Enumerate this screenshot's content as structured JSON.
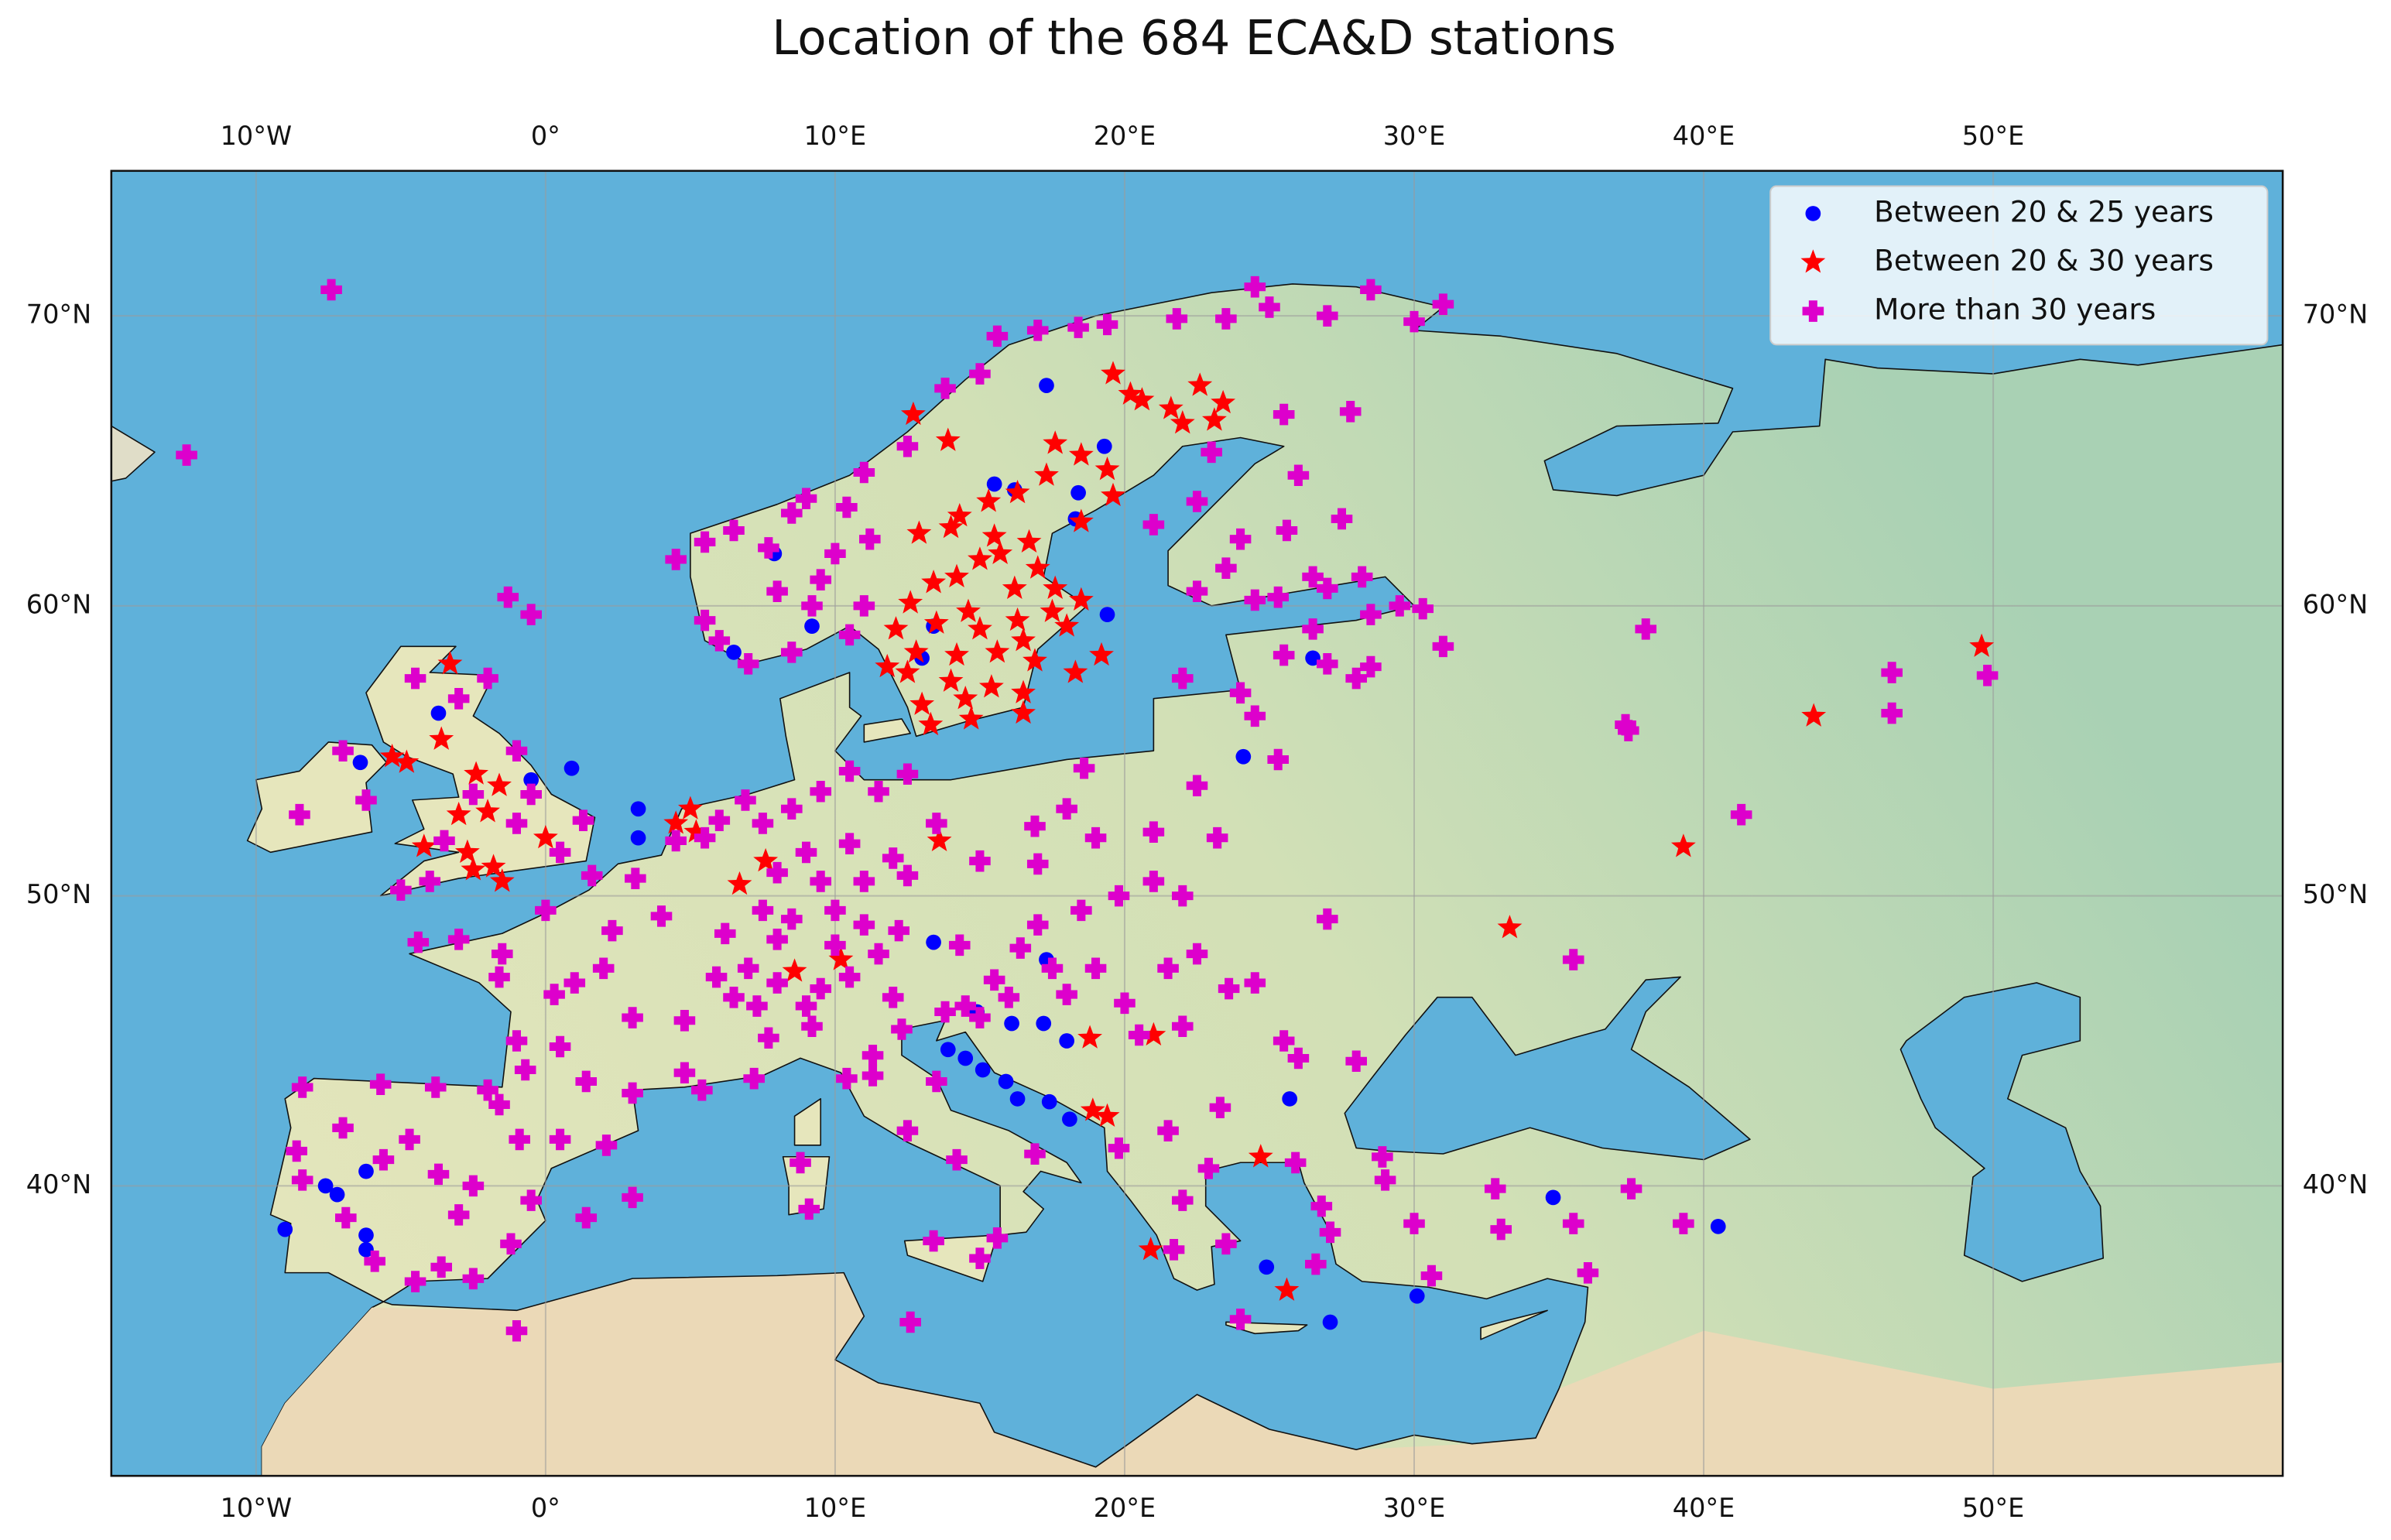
{
  "chart_data": {
    "type": "scatter",
    "title": "Location of the 684 ECA&D stations",
    "xlim": [
      -15,
      60
    ],
    "ylim": [
      30,
      75
    ],
    "xticks": [
      {
        "value": -10,
        "label": "10°W"
      },
      {
        "value": 0,
        "label": "0°"
      },
      {
        "value": 10,
        "label": "10°E"
      },
      {
        "value": 20,
        "label": "20°E"
      },
      {
        "value": 30,
        "label": "30°E"
      },
      {
        "value": 40,
        "label": "40°E"
      },
      {
        "value": 50,
        "label": "50°E"
      }
    ],
    "yticks": [
      {
        "value": 40,
        "label": "40°N"
      },
      {
        "value": 50,
        "label": "50°N"
      },
      {
        "value": 60,
        "label": "60°N"
      },
      {
        "value": 70,
        "label": "70°N"
      }
    ],
    "grid": true,
    "legend": "upper right",
    "series": [
      {
        "name": "Between 20 & 25 years",
        "color": "#0000ff",
        "marker": "o",
        "x": [
          17.3,
          19.3,
          18.4,
          18.3,
          15.5,
          16.2,
          7.9,
          9.2,
          13.4,
          13.0,
          19.4,
          6.5,
          26.5,
          24.1,
          -3.7,
          -6.4,
          -0.5,
          0.9,
          3.2,
          3.2,
          13.4,
          17.3,
          14.9,
          16.1,
          17.2,
          18.0,
          13.9,
          14.5,
          15.1,
          15.9,
          16.3,
          17.4,
          18.1,
          25.7,
          -7.6,
          -7.2,
          -6.2,
          -6.2,
          -6.2,
          -9.0,
          34.8,
          40.5,
          24.9,
          27.1,
          30.1
        ],
        "values": [
          67.6,
          65.5,
          63.9,
          63.0,
          64.2,
          64.0,
          61.8,
          59.3,
          59.3,
          58.2,
          59.7,
          58.4,
          58.2,
          54.8,
          56.3,
          54.6,
          54.0,
          54.4,
          53.0,
          52.0,
          48.4,
          47.8,
          46.0,
          45.6,
          45.6,
          45.0,
          44.7,
          44.4,
          44.0,
          43.6,
          43.0,
          42.9,
          42.3,
          43.0,
          40.0,
          39.7,
          40.5,
          38.3,
          37.8,
          38.5,
          39.6,
          38.6,
          37.2,
          35.3,
          36.2
        ]
      },
      {
        "name": "Between 20 & 30 years",
        "color": "#ff0000",
        "marker": "*",
        "x": [
          12.7,
          13.9,
          17.6,
          18.5,
          19.4,
          19.6,
          20.2,
          20.6,
          21.6,
          22.0,
          22.6,
          23.1,
          23.4,
          17.3,
          16.3,
          15.3,
          14.3,
          12.9,
          15.5,
          14.0,
          16.7,
          18.5,
          19.6,
          15.7,
          17.0,
          14.2,
          15.0,
          13.4,
          16.2,
          17.6,
          18.5,
          12.6,
          14.6,
          16.3,
          17.5,
          12.1,
          13.5,
          15.0,
          16.5,
          18.0,
          12.8,
          14.2,
          15.6,
          16.9,
          18.3,
          19.2,
          12.5,
          14.0,
          15.4,
          16.5,
          13.0,
          14.5,
          13.3,
          14.7,
          16.5,
          11.8,
          -3.3,
          -3.6,
          -4.8,
          -5.3,
          -2.4,
          -1.6,
          -3.0,
          -2.0,
          -4.2,
          -2.7,
          -1.8,
          -2.5,
          -1.5,
          0.0,
          5.0,
          4.5,
          5.2,
          7.6,
          6.7,
          8.6,
          10.2,
          13.6,
          18.8,
          21.0,
          18.9,
          19.4,
          20.9,
          24.7,
          25.6,
          33.3,
          39.3,
          43.8,
          49.6
        ],
        "values": [
          66.6,
          65.7,
          65.6,
          65.2,
          64.7,
          68.0,
          67.3,
          67.1,
          66.8,
          66.3,
          67.6,
          66.4,
          67.0,
          64.5,
          63.9,
          63.6,
          63.1,
          62.5,
          62.4,
          62.7,
          62.2,
          62.9,
          63.8,
          61.8,
          61.3,
          61.0,
          61.6,
          60.8,
          60.6,
          60.6,
          60.2,
          60.1,
          59.8,
          59.5,
          59.8,
          59.2,
          59.4,
          59.2,
          58.8,
          59.3,
          58.4,
          58.3,
          58.4,
          58.1,
          57.7,
          58.3,
          57.7,
          57.4,
          57.2,
          57.0,
          56.6,
          56.8,
          55.9,
          56.1,
          56.3,
          57.9,
          58.0,
          55.4,
          54.6,
          54.8,
          54.2,
          53.8,
          52.8,
          52.9,
          51.7,
          51.5,
          51.0,
          50.9,
          50.5,
          52.0,
          53.0,
          52.5,
          52.2,
          51.2,
          50.4,
          47.4,
          47.8,
          51.9,
          45.1,
          45.2,
          42.6,
          42.4,
          37.8,
          41.0,
          36.4,
          48.9,
          51.7,
          56.2,
          58.6
        ]
      },
      {
        "name": "More than 30 years",
        "color": "#dd00cc",
        "marker": "P",
        "x": [
          -12.4,
          -7.4,
          4.5,
          5.5,
          6.5,
          7.7,
          8.5,
          9.0,
          10.4,
          11.0,
          12.5,
          13.8,
          15.0,
          15.6,
          17.0,
          18.4,
          19.4,
          21.8,
          23.5,
          25.0,
          27.0,
          28.5,
          30.0,
          31.0,
          24.5,
          8.0,
          9.5,
          10.0,
          11.2,
          9.2,
          11.0,
          10.5,
          8.5,
          7.0,
          6.0,
          5.5,
          21.0,
          22.5,
          24.0,
          25.6,
          27.5,
          26.0,
          27.8,
          25.5,
          23.0,
          23.5,
          25.3,
          22.5,
          24.5,
          26.5,
          28.2,
          27.0,
          28.5,
          29.5,
          22.0,
          24.0,
          25.5,
          27.0,
          26.5,
          28.0,
          24.5,
          25.3,
          28.5,
          30.3,
          31.0,
          38.0,
          37.4,
          37.3,
          41.3,
          46.5,
          46.5,
          49.8,
          35.5,
          27.0,
          25.5,
          28.0,
          -6.2,
          -8.5,
          -7.0,
          -4.5,
          -3.0,
          -2.0,
          -1.0,
          -0.5,
          -2.5,
          -3.5,
          -1.0,
          0.5,
          1.3,
          -5.0,
          -4.0,
          -0.5,
          -1.3,
          4.5,
          5.5,
          6.0,
          6.9,
          7.5,
          8.5,
          9.5,
          10.5,
          11.5,
          12.5,
          13.5,
          12.0,
          10.5,
          9.0,
          8.0,
          9.5,
          11.0,
          12.5,
          7.5,
          8.5,
          10.0,
          11.0,
          12.2,
          11.5,
          10.0,
          8.0,
          7.0,
          8.0,
          9.5,
          10.5,
          6.5,
          7.3,
          9.0,
          12.0,
          13.8,
          14.5,
          15.0,
          16.0,
          16.4,
          15.5,
          14.3,
          17.0,
          18.5,
          19.8,
          21.0,
          22.0,
          21.0,
          18.0,
          16.9,
          15.0,
          17.0,
          19.0,
          23.2,
          22.5,
          18.6,
          19.0,
          17.5,
          18.0,
          20.0,
          21.5,
          22.5,
          20.5,
          22.0,
          23.6,
          24.5,
          26.0,
          23.3,
          21.5,
          19.8,
          23.5,
          22.0,
          22.9,
          25.9,
          21.7,
          24.0,
          26.6,
          26.8,
          28.9,
          29.0,
          32.8,
          30.6,
          33.0,
          36.0,
          35.5,
          39.3,
          37.5,
          27.1,
          30.0,
          2.3,
          0.0,
          1.0,
          -1.5,
          -3.0,
          -4.4,
          -1.6,
          0.3,
          -1.0,
          0.5,
          -0.7,
          1.4,
          3.0,
          4.8,
          5.4,
          7.2,
          3.0,
          4.8,
          5.9,
          6.2,
          4.0,
          3.1,
          1.6,
          2.0,
          -8.4,
          -5.7,
          -3.8,
          -2.0,
          -1.6,
          0.5,
          2.1,
          -0.9,
          -3.7,
          -4.7,
          -5.6,
          -6.9,
          -5.9,
          -4.5,
          -3.6,
          -1.2,
          -0.5,
          -2.5,
          -3.0,
          -8.6,
          -8.4,
          -7.0,
          3.0,
          1.4,
          -2.5,
          -1.0,
          9.2,
          7.7,
          11.3,
          12.3,
          11.3,
          12.5,
          14.2,
          16.9,
          15.6,
          13.4,
          15.0,
          9.1,
          8.8,
          13.5,
          10.4,
          12.6
        ],
        "values": [
          65.2,
          70.9,
          61.6,
          62.2,
          62.6,
          62.0,
          63.2,
          63.7,
          63.4,
          64.6,
          65.5,
          67.5,
          68.0,
          69.3,
          69.5,
          69.6,
          69.7,
          69.9,
          69.9,
          70.3,
          70.0,
          70.9,
          69.8,
          70.4,
          71.0,
          60.5,
          60.9,
          61.8,
          62.3,
          60.0,
          60.0,
          59.0,
          58.4,
          58.0,
          58.8,
          59.5,
          62.8,
          63.6,
          62.3,
          62.6,
          63.0,
          64.5,
          66.7,
          66.6,
          65.3,
          61.3,
          60.3,
          60.5,
          60.2,
          61.0,
          61.0,
          60.6,
          59.7,
          60.0,
          57.5,
          57.0,
          58.3,
          58.0,
          59.2,
          57.5,
          56.2,
          54.7,
          57.9,
          59.9,
          58.6,
          59.2,
          55.7,
          55.9,
          52.8,
          56.3,
          57.7,
          57.6,
          47.8,
          49.2,
          45.0,
          44.3,
          53.3,
          52.8,
          55.0,
          57.5,
          56.8,
          57.5,
          55.0,
          53.5,
          53.5,
          51.9,
          52.5,
          51.5,
          52.6,
          50.2,
          50.5,
          59.7,
          60.3,
          51.9,
          52.0,
          52.6,
          53.3,
          52.5,
          53.0,
          53.6,
          54.3,
          53.6,
          54.2,
          52.5,
          51.3,
          51.8,
          51.5,
          50.8,
          50.5,
          50.5,
          50.7,
          49.5,
          49.2,
          49.5,
          49.0,
          48.8,
          48.0,
          48.3,
          48.5,
          47.5,
          47.0,
          46.8,
          47.2,
          46.5,
          46.2,
          46.2,
          46.5,
          46.0,
          46.2,
          45.8,
          46.5,
          48.2,
          47.1,
          48.3,
          49.0,
          49.5,
          50.0,
          50.5,
          50.0,
          52.2,
          53.0,
          52.4,
          51.2,
          51.1,
          52.0,
          52.0,
          53.8,
          54.4,
          47.5,
          47.5,
          46.6,
          46.3,
          47.5,
          48.0,
          45.2,
          45.5,
          46.8,
          47.0,
          44.4,
          42.7,
          41.9,
          41.3,
          38.0,
          39.5,
          40.6,
          40.8,
          37.8,
          35.4,
          37.3,
          39.3,
          41.0,
          40.2,
          39.9,
          36.9,
          38.5,
          37.0,
          38.7,
          38.7,
          39.9,
          38.4,
          38.7,
          48.8,
          49.5,
          47.0,
          48.0,
          48.5,
          48.4,
          47.2,
          46.6,
          45.0,
          44.8,
          44.0,
          43.6,
          43.2,
          43.9,
          43.3,
          43.7,
          45.8,
          45.7,
          47.2,
          48.7,
          49.3,
          50.6,
          50.7,
          47.5,
          43.4,
          43.5,
          43.4,
          43.3,
          42.8,
          41.6,
          41.4,
          41.6,
          40.4,
          41.6,
          40.9,
          38.9,
          37.4,
          36.7,
          37.2,
          38.0,
          39.5,
          40.0,
          39.0,
          41.2,
          40.2,
          42.0,
          39.6,
          38.9,
          36.8,
          35.0,
          45.5,
          45.1,
          44.5,
          45.4,
          43.8,
          41.9,
          40.9,
          41.1,
          38.2,
          38.1,
          37.5,
          39.2,
          40.8,
          43.6,
          43.7,
          35.3
        ]
      }
    ]
  }
}
